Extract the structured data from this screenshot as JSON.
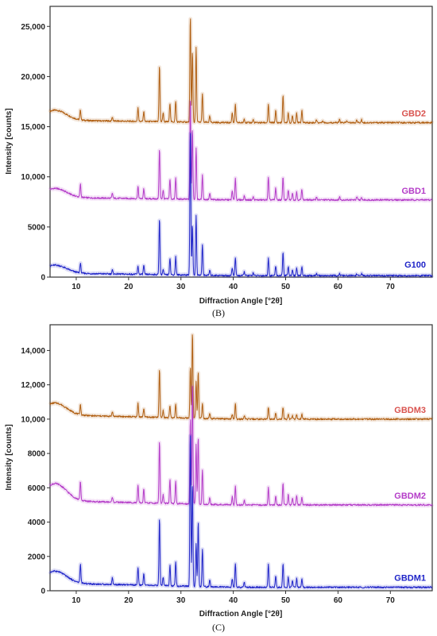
{
  "colors": {
    "brown": "#b05f12",
    "magenta": "#b43cc8",
    "blue": "#1f24c8",
    "brown_label": "#d9534f",
    "magenta_label": "#b43cc8",
    "blue_label": "#1f24c8"
  },
  "chart_data": [
    {
      "type": "line",
      "caption": "(B)",
      "xlabel": "Diffraction Angle [°2θ]",
      "ylabel": "Intensity [counts]",
      "xlim": [
        5,
        78
      ],
      "ylim": [
        0,
        27000
      ],
      "xticks": [
        10,
        20,
        30,
        40,
        50,
        60,
        70
      ],
      "yticks": [
        {
          "value": 0,
          "label": "0"
        },
        {
          "value": 5000,
          "label": "5000"
        },
        {
          "value": 10000,
          "label": "10,000"
        },
        {
          "value": 15000,
          "label": "15,000"
        },
        {
          "value": 20000,
          "label": "20,000"
        },
        {
          "value": 25000,
          "label": "25,000"
        }
      ],
      "grid": false,
      "series": [
        {
          "name": "GBD2",
          "color_key": "brown",
          "label_color_key": "brown_label",
          "baseline": 15400,
          "hump": {
            "amp": 1000,
            "center": 6,
            "width": 3
          },
          "peaks": [
            [
              10.8,
              1000
            ],
            [
              16.9,
              400
            ],
            [
              21.8,
              1400
            ],
            [
              22.9,
              1000
            ],
            [
              25.9,
              5600
            ],
            [
              26.6,
              900
            ],
            [
              27.9,
              1900
            ],
            [
              29.0,
              2100
            ],
            [
              31.8,
              10500
            ],
            [
              32.2,
              7000
            ],
            [
              32.9,
              7500
            ],
            [
              34.1,
              2800
            ],
            [
              35.5,
              600
            ],
            [
              39.8,
              1000
            ],
            [
              40.4,
              1800
            ],
            [
              42.1,
              400
            ],
            [
              43.8,
              300
            ],
            [
              46.7,
              1800
            ],
            [
              48.1,
              1200
            ],
            [
              49.5,
              2700
            ],
            [
              50.5,
              1000
            ],
            [
              51.3,
              700
            ],
            [
              52.1,
              1000
            ],
            [
              53.1,
              1200
            ],
            [
              55.9,
              300
            ],
            [
              57.1,
              200
            ],
            [
              60.3,
              300
            ],
            [
              61.7,
              200
            ],
            [
              63.6,
              300
            ],
            [
              64.5,
              300
            ]
          ]
        },
        {
          "name": "GBD1",
          "color_key": "magenta",
          "label_color_key": "magenta_label",
          "baseline": 7700,
          "hump": {
            "amp": 900,
            "center": 6,
            "width": 3
          },
          "peaks": [
            [
              10.8,
              1300
            ],
            [
              16.9,
              500
            ],
            [
              21.8,
              1200
            ],
            [
              22.9,
              1000
            ],
            [
              25.9,
              5000
            ],
            [
              26.6,
              900
            ],
            [
              27.9,
              2000
            ],
            [
              29.0,
              2100
            ],
            [
              31.8,
              10000
            ],
            [
              32.2,
              7000
            ],
            [
              32.9,
              5200
            ],
            [
              34.1,
              2400
            ],
            [
              35.5,
              600
            ],
            [
              39.8,
              900
            ],
            [
              40.4,
              2200
            ],
            [
              42.1,
              400
            ],
            [
              43.8,
              300
            ],
            [
              46.7,
              2300
            ],
            [
              48.1,
              1200
            ],
            [
              49.5,
              2300
            ],
            [
              50.5,
              1000
            ],
            [
              51.3,
              700
            ],
            [
              52.1,
              800
            ],
            [
              53.1,
              1100
            ],
            [
              55.9,
              300
            ],
            [
              60.3,
              300
            ],
            [
              63.6,
              300
            ],
            [
              64.5,
              200
            ]
          ]
        },
        {
          "name": "G100",
          "color_key": "blue",
          "label_color_key": "blue_label",
          "baseline": 150,
          "hump": {
            "amp": 800,
            "center": 6,
            "width": 3
          },
          "peaks": [
            [
              10.8,
              1000
            ],
            [
              16.9,
              400
            ],
            [
              21.8,
              800
            ],
            [
              22.9,
              900
            ],
            [
              25.9,
              5600
            ],
            [
              26.6,
              500
            ],
            [
              27.9,
              1700
            ],
            [
              29.0,
              1800
            ],
            [
              31.8,
              14500
            ],
            [
              32.2,
              5000
            ],
            [
              32.9,
              5900
            ],
            [
              34.1,
              3000
            ],
            [
              35.5,
              500
            ],
            [
              39.8,
              800
            ],
            [
              40.4,
              1800
            ],
            [
              42.1,
              400
            ],
            [
              43.8,
              300
            ],
            [
              46.7,
              1700
            ],
            [
              48.1,
              1000
            ],
            [
              49.5,
              2300
            ],
            [
              50.5,
              900
            ],
            [
              51.3,
              600
            ],
            [
              52.1,
              800
            ],
            [
              53.1,
              900
            ],
            [
              55.9,
              200
            ],
            [
              60.3,
              200
            ],
            [
              63.6,
              200
            ],
            [
              64.5,
              200
            ]
          ]
        }
      ]
    },
    {
      "type": "line",
      "caption": "(C)",
      "xlabel": "Diffraction Angle [°2θ]",
      "ylabel": "Intensity [counts]",
      "xlim": [
        5,
        78
      ],
      "ylim": [
        0,
        15500
      ],
      "xticks": [
        10,
        20,
        30,
        40,
        50,
        60,
        70
      ],
      "yticks": [
        {
          "value": 0,
          "label": "0"
        },
        {
          "value": 2000,
          "label": "2000"
        },
        {
          "value": 4000,
          "label": "4000"
        },
        {
          "value": 6000,
          "label": "6000"
        },
        {
          "value": 8000,
          "label": "8000"
        },
        {
          "value": 10000,
          "label": "10,000"
        },
        {
          "value": 12000,
          "label": "12,000"
        },
        {
          "value": 14000,
          "label": "14,000"
        }
      ],
      "grid": false,
      "series": [
        {
          "name": "GBDM3",
          "color_key": "brown",
          "label_color_key": "brown_label",
          "baseline": 10000,
          "hump": {
            "amp": 700,
            "center": 6,
            "width": 3
          },
          "peaks": [
            [
              10.8,
              600
            ],
            [
              16.9,
              300
            ],
            [
              21.8,
              800
            ],
            [
              22.9,
              500
            ],
            [
              25.9,
              2800
            ],
            [
              26.6,
              400
            ],
            [
              27.9,
              700
            ],
            [
              29.0,
              800
            ],
            [
              31.8,
              3000
            ],
            [
              32.2,
              5000
            ],
            [
              32.9,
              2200
            ],
            [
              33.3,
              2700
            ],
            [
              34.1,
              900
            ],
            [
              35.5,
              300
            ],
            [
              39.8,
              300
            ],
            [
              40.4,
              900
            ],
            [
              42.1,
              200
            ],
            [
              46.7,
              700
            ],
            [
              48.1,
              400
            ],
            [
              49.5,
              700
            ],
            [
              50.5,
              300
            ],
            [
              51.3,
              200
            ],
            [
              52.1,
              300
            ],
            [
              53.1,
              300
            ]
          ]
        },
        {
          "name": "GBDM2",
          "color_key": "magenta",
          "label_color_key": "magenta_label",
          "baseline": 5000,
          "hump": {
            "amp": 1000,
            "center": 6,
            "width": 3
          },
          "peaks": [
            [
              10.8,
              1100
            ],
            [
              16.9,
              300
            ],
            [
              21.8,
              1000
            ],
            [
              22.9,
              800
            ],
            [
              25.9,
              3600
            ],
            [
              26.6,
              500
            ],
            [
              27.9,
              1400
            ],
            [
              29.0,
              1300
            ],
            [
              31.8,
              5000
            ],
            [
              32.2,
              7000
            ],
            [
              32.9,
              3500
            ],
            [
              33.3,
              3900
            ],
            [
              34.1,
              2000
            ],
            [
              35.5,
              400
            ],
            [
              39.8,
              500
            ],
            [
              40.4,
              1100
            ],
            [
              42.1,
              300
            ],
            [
              46.7,
              1000
            ],
            [
              48.1,
              500
            ],
            [
              49.5,
              1300
            ],
            [
              50.5,
              600
            ],
            [
              51.3,
              400
            ],
            [
              52.1,
              500
            ],
            [
              53.1,
              500
            ]
          ]
        },
        {
          "name": "GBDM1",
          "color_key": "blue",
          "label_color_key": "blue_label",
          "baseline": 200,
          "hump": {
            "amp": 700,
            "center": 6,
            "width": 3
          },
          "peaks": [
            [
              10.8,
              1100
            ],
            [
              16.9,
              400
            ],
            [
              21.8,
              1000
            ],
            [
              22.9,
              700
            ],
            [
              25.9,
              3900
            ],
            [
              26.6,
              500
            ],
            [
              27.9,
              1200
            ],
            [
              29.0,
              1400
            ],
            [
              31.8,
              9000
            ],
            [
              32.2,
              6000
            ],
            [
              32.9,
              2500
            ],
            [
              33.3,
              3800
            ],
            [
              34.1,
              2200
            ],
            [
              35.5,
              400
            ],
            [
              39.8,
              500
            ],
            [
              40.4,
              1400
            ],
            [
              42.1,
              300
            ],
            [
              46.7,
              1400
            ],
            [
              48.1,
              700
            ],
            [
              49.5,
              1400
            ],
            [
              50.5,
              600
            ],
            [
              51.3,
              400
            ],
            [
              52.1,
              500
            ],
            [
              53.1,
              500
            ]
          ]
        }
      ]
    }
  ]
}
